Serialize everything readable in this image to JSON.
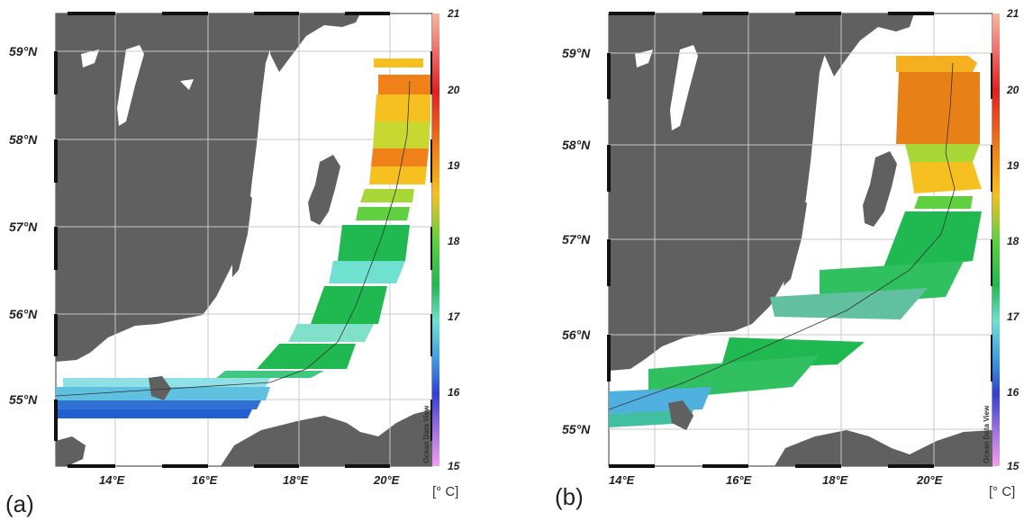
{
  "panels": [
    {
      "id": "a",
      "label": "(a)",
      "unit": "[° C]",
      "lat_labels": [
        "59°N",
        "58°N",
        "57°N",
        "56°N",
        "55°N"
      ],
      "lon_labels": [
        "14°E",
        "16°E",
        "18°E",
        "20°E"
      ],
      "colorbar_ticks": [
        "21",
        "20",
        "19",
        "18",
        "17",
        "16",
        "15"
      ],
      "watermark": "Ocean Data View"
    },
    {
      "id": "b",
      "label": "(b)",
      "unit": "[° C]",
      "lat_labels": [
        "59°N",
        "58°N",
        "57°N",
        "56°N",
        "55°N"
      ],
      "lon_labels": [
        "14°E",
        "16°E",
        "18°E",
        "20°E"
      ],
      "colorbar_ticks": [
        "21",
        "20",
        "19",
        "18",
        "17",
        "16",
        "15"
      ],
      "watermark": "Ocean Data View"
    }
  ],
  "colors": {
    "land": "#606060",
    "sea": "#ffffff",
    "grid": "#c8c8c8"
  },
  "colorbar_range": [
    15,
    21
  ]
}
